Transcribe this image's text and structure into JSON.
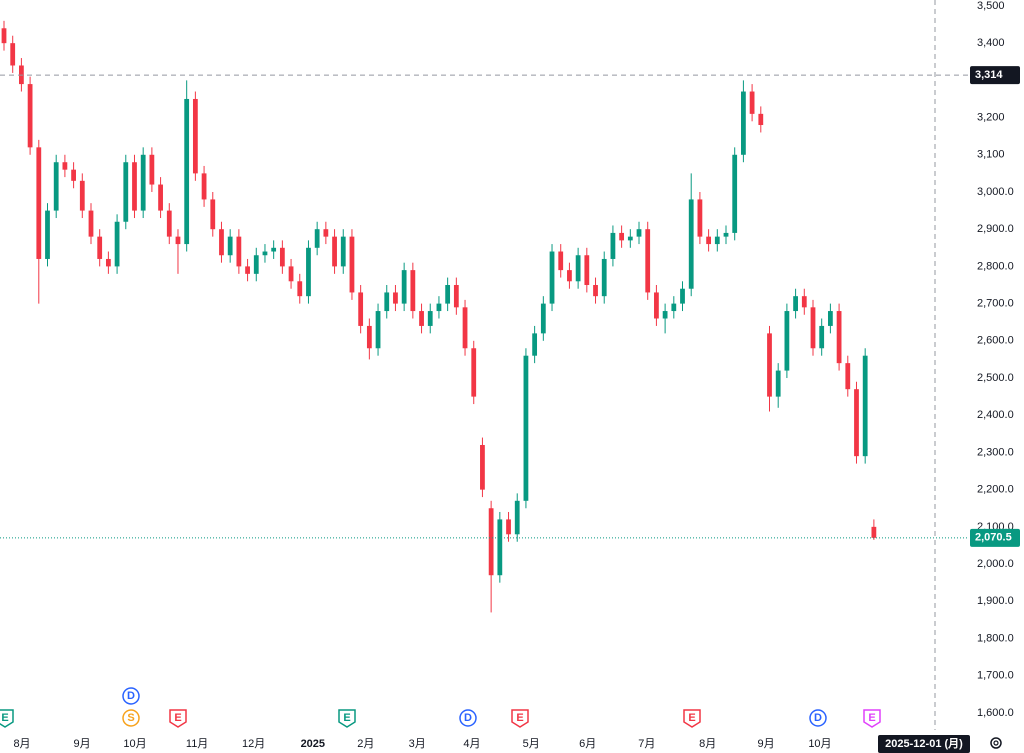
{
  "chart_data": {
    "type": "candlestick",
    "up_color": "#089981",
    "down_color": "#f23645",
    "open": [
      3440,
      3400,
      3340,
      3290,
      3120,
      2820,
      2950,
      3080,
      3060,
      3030,
      2950,
      2880,
      2820,
      2800,
      2920,
      3080,
      2950,
      3100,
      3020,
      2950,
      2880,
      2860,
      3250,
      3050,
      2980,
      2900,
      2830,
      2880,
      2800,
      2780,
      2830,
      2840,
      2850,
      2800,
      2760,
      2720,
      2850,
      2900,
      2880,
      2800,
      2880,
      2730,
      2640,
      2580,
      2680,
      2730,
      2700,
      2790,
      2680,
      2640,
      2680,
      2700,
      2750,
      2690,
      2580,
      2320,
      2150,
      1970,
      2120,
      2080,
      2170,
      2560,
      2620,
      2700,
      2840,
      2790,
      2760,
      2830,
      2750,
      2720,
      2820,
      2890,
      2870,
      2880,
      2900,
      2730,
      2660,
      2680,
      2700,
      2740,
      2980,
      2880,
      2860,
      2880,
      2890,
      3100,
      3270,
      3210,
      2620,
      2450,
      2520,
      2680,
      2720,
      2690,
      2580,
      2640,
      2680,
      2540,
      2470,
      2290,
      2100
    ],
    "high": [
      3460,
      3420,
      3360,
      3310,
      3140,
      2970,
      3100,
      3100,
      3080,
      3050,
      2970,
      2900,
      2840,
      2940,
      3100,
      3100,
      3120,
      3120,
      3040,
      2970,
      2900,
      3300,
      3270,
      3070,
      3000,
      2920,
      2900,
      2900,
      2820,
      2850,
      2860,
      2870,
      2870,
      2820,
      2780,
      2870,
      2920,
      2920,
      2900,
      2900,
      2900,
      2750,
      2660,
      2700,
      2750,
      2750,
      2810,
      2810,
      2700,
      2700,
      2720,
      2770,
      2770,
      2710,
      2600,
      2340,
      2170,
      2140,
      2140,
      2190,
      2580,
      2640,
      2720,
      2860,
      2860,
      2810,
      2850,
      2850,
      2770,
      2840,
      2910,
      2910,
      2900,
      2920,
      2920,
      2750,
      2700,
      2720,
      2760,
      3050,
      3000,
      2900,
      2900,
      2910,
      3120,
      3300,
      3290,
      3230,
      2640,
      2540,
      2700,
      2740,
      2740,
      2710,
      2660,
      2700,
      2700,
      2560,
      2490,
      2580,
      2120
    ],
    "low": [
      3380,
      3320,
      3270,
      3100,
      2700,
      2800,
      2930,
      3040,
      3010,
      2930,
      2860,
      2800,
      2780,
      2780,
      2900,
      2930,
      2930,
      3000,
      2930,
      2860,
      2780,
      2840,
      3030,
      2960,
      2880,
      2810,
      2810,
      2780,
      2760,
      2760,
      2810,
      2820,
      2780,
      2740,
      2700,
      2700,
      2830,
      2860,
      2780,
      2780,
      2710,
      2620,
      2550,
      2560,
      2660,
      2680,
      2680,
      2660,
      2620,
      2620,
      2660,
      2680,
      2670,
      2560,
      2430,
      2180,
      1870,
      1950,
      2060,
      2060,
      2150,
      2540,
      2600,
      2680,
      2770,
      2740,
      2740,
      2730,
      2700,
      2700,
      2800,
      2850,
      2850,
      2860,
      2710,
      2640,
      2620,
      2660,
      2680,
      2720,
      2860,
      2840,
      2840,
      2860,
      2870,
      3080,
      3190,
      3160,
      2410,
      2420,
      2500,
      2660,
      2670,
      2560,
      2560,
      2620,
      2520,
      2450,
      2270,
      2270,
      2065
    ],
    "close": [
      3400,
      3340,
      3290,
      3120,
      2820,
      2950,
      3080,
      3060,
      3030,
      2950,
      2880,
      2820,
      2800,
      2920,
      3080,
      2950,
      3100,
      3020,
      2950,
      2880,
      2860,
      3250,
      3050,
      2980,
      2900,
      2830,
      2880,
      2800,
      2780,
      2830,
      2840,
      2850,
      2800,
      2760,
      2720,
      2850,
      2900,
      2880,
      2800,
      2880,
      2730,
      2640,
      2580,
      2680,
      2730,
      2700,
      2790,
      2680,
      2640,
      2680,
      2700,
      2750,
      2690,
      2580,
      2450,
      2200,
      1970,
      2120,
      2080,
      2170,
      2560,
      2620,
      2700,
      2840,
      2790,
      2760,
      2830,
      2750,
      2720,
      2820,
      2890,
      2870,
      2880,
      2900,
      2730,
      2660,
      2680,
      2700,
      2740,
      2980,
      2880,
      2860,
      2880,
      2890,
      3100,
      3270,
      3210,
      3180,
      2450,
      2520,
      2680,
      2720,
      2690,
      2580,
      2640,
      2680,
      2540,
      2470,
      2290,
      2560,
      2070.5
    ],
    "xlim": [
      -0.46,
      109.9
    ],
    "xticks": [
      {
        "value": 2.07,
        "label": "8月"
      },
      {
        "value": 8.97,
        "label": "9月"
      },
      {
        "value": 15.06,
        "label": "10月"
      },
      {
        "value": 22.2,
        "label": "11月"
      },
      {
        "value": 28.7,
        "label": "12月"
      },
      {
        "value": 35.5,
        "label": "2025"
      },
      {
        "value": 41.6,
        "label": "2月"
      },
      {
        "value": 47.5,
        "label": "3月"
      },
      {
        "value": 53.8,
        "label": "4月"
      },
      {
        "value": 60.6,
        "label": "5月"
      },
      {
        "value": 67.1,
        "label": "6月"
      },
      {
        "value": 73.9,
        "label": "7月"
      },
      {
        "value": 80.9,
        "label": "8月"
      },
      {
        "value": 87.6,
        "label": "9月"
      },
      {
        "value": 93.8,
        "label": "10月"
      }
    ],
    "ylim": [
      1554,
      3516
    ],
    "yticks": [
      {
        "value": 1600,
        "label": "1,600.0"
      },
      {
        "value": 1700,
        "label": "1,700.0"
      },
      {
        "value": 1800,
        "label": "1,800.0"
      },
      {
        "value": 1900,
        "label": "1,900.0"
      },
      {
        "value": 2000,
        "label": "2,000.0"
      },
      {
        "value": 2100,
        "label": "2,100.0"
      },
      {
        "value": 2200,
        "label": "2,200.0"
      },
      {
        "value": 2300,
        "label": "2,300.0"
      },
      {
        "value": 2400,
        "label": "2,400.0"
      },
      {
        "value": 2500,
        "label": "2,500.0"
      },
      {
        "value": 2600,
        "label": "2,600.0"
      },
      {
        "value": 2700,
        "label": "2,700.0"
      },
      {
        "value": 2800,
        "label": "2,800.0"
      },
      {
        "value": 2900,
        "label": "2,900.0"
      },
      {
        "value": 3000,
        "label": "3,000.0"
      },
      {
        "value": 3100,
        "label": "3,100"
      },
      {
        "value": 3200,
        "label": "3,200"
      },
      {
        "value": 3400,
        "label": "3,400"
      },
      {
        "value": 3500,
        "label": "3,500"
      }
    ],
    "price_lines": [
      {
        "value": 3314,
        "label": "3,314",
        "color": "#131722",
        "style": "dashed"
      },
      {
        "value": 2070.5,
        "label": "2,070.5",
        "color": "#089981",
        "style": "dotted"
      }
    ],
    "crosshair_date": "2025-12-01 (月)",
    "events": [
      {
        "label": "E",
        "color": "#089981"
      },
      {
        "label": "D",
        "color": "#2962ff"
      },
      {
        "label": "S",
        "color": "#f7a21b"
      },
      {
        "label": "E",
        "color": "#f23645"
      },
      {
        "label": "E",
        "color": "#089981"
      },
      {
        "label": "D",
        "color": "#2962ff"
      },
      {
        "label": "E",
        "color": "#f23645"
      },
      {
        "label": "E",
        "color": "#f23645"
      },
      {
        "label": "D",
        "color": "#2962ff"
      },
      {
        "label": "E",
        "color": "#e040fb"
      }
    ]
  }
}
